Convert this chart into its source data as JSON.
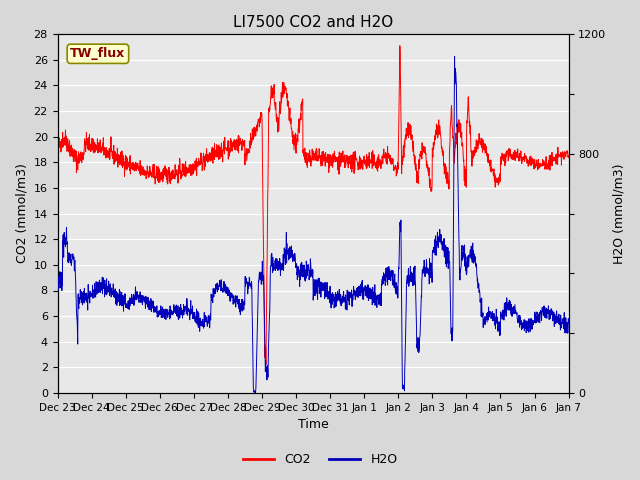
{
  "title": "LI7500 CO2 and H2O",
  "xlabel": "Time",
  "ylabel_left": "CO2 (mmol/m3)",
  "ylabel_right": "H2O (mmol/m3)",
  "ylim_left": [
    0,
    28
  ],
  "ylim_right": [
    0,
    1200
  ],
  "yticks_left": [
    0,
    2,
    4,
    6,
    8,
    10,
    12,
    14,
    16,
    18,
    20,
    22,
    24,
    26,
    28
  ],
  "yticks_right": [
    0,
    200,
    400,
    600,
    800,
    1000,
    1200
  ],
  "ytick_right_labels": [
    "0",
    "",
    "",
    "",
    "800",
    "",
    "1200"
  ],
  "xtick_labels": [
    "Dec 23",
    "Dec 24",
    "Dec 25",
    "Dec 26",
    "Dec 27",
    "Dec 28",
    "Dec 29",
    "Dec 30",
    "Dec 31",
    "Jan 1",
    "Jan 2",
    "Jan 3",
    "Jan 4",
    "Jan 5",
    "Jan 6",
    "Jan 7"
  ],
  "co2_color": "#ff0000",
  "h2o_color": "#0000bb",
  "bg_color": "#d8d8d8",
  "plot_bg_color": "#e8e8e8",
  "grid_color": "#ffffff",
  "annotation_text": "TW_flux",
  "annotation_bg": "#ffffcc",
  "annotation_border": "#888800",
  "annotation_text_color": "#880000",
  "legend_co2": "CO2",
  "legend_h2o": "H2O",
  "title_fontsize": 11,
  "axis_fontsize": 9,
  "tick_fontsize": 8
}
